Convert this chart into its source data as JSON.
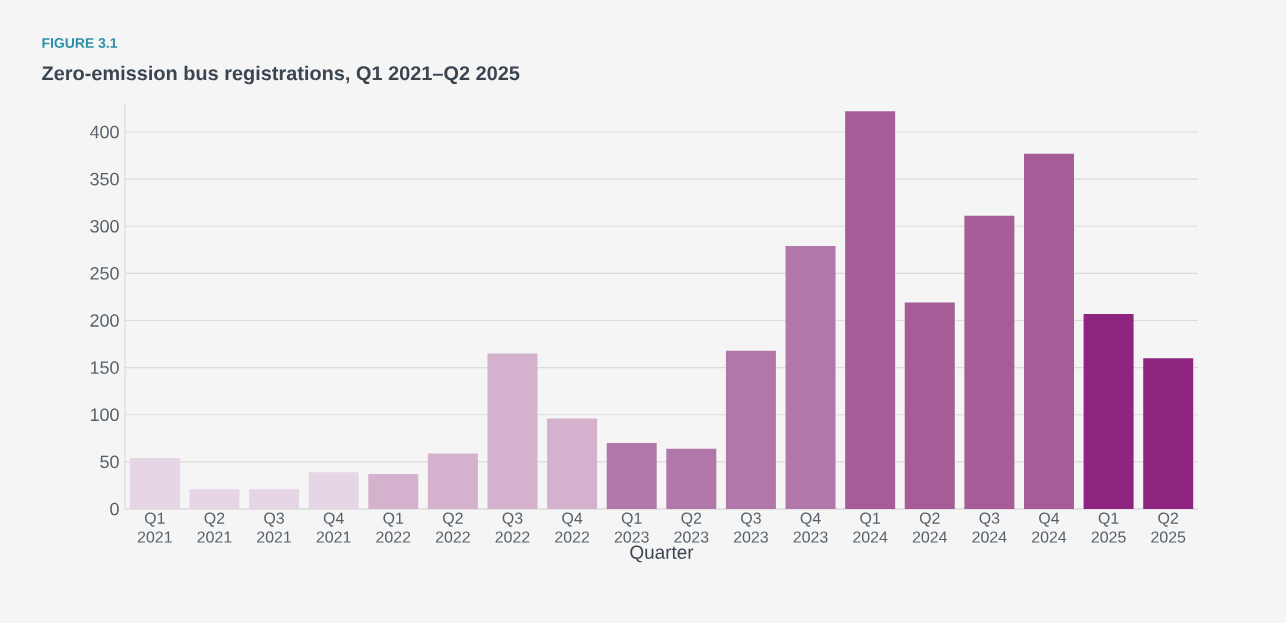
{
  "chart_data": {
    "type": "bar",
    "title": "Zero-emission bus registrations, Q1 2021–Q2 2025",
    "xlabel": "Quarter",
    "annotations": [
      "FIGURE 3.1"
    ],
    "categories": [
      "Q1 2021",
      "Q2 2021",
      "Q3 2021",
      "Q4 2021",
      "Q1 2022",
      "Q2 2022",
      "Q3 2022",
      "Q4 2022",
      "Q1 2023",
      "Q2 2023",
      "Q3 2023",
      "Q4 2023",
      "Q1 2024",
      "Q2 2024",
      "Q3 2024",
      "Q4 2024",
      "Q1 2025",
      "Q2 2025"
    ],
    "values": [
      54,
      21,
      21,
      39,
      37,
      59,
      165,
      96,
      70,
      64,
      168,
      279,
      422,
      219,
      311,
      377,
      207,
      160
    ],
    "colors": [
      "#e6d5e4",
      "#e6d5e4",
      "#e6d5e4",
      "#e6d5e4",
      "#d4b1cd",
      "#d4b1cd",
      "#d4b1cd",
      "#d4b1cd",
      "#b277a9",
      "#b277a9",
      "#b277a9",
      "#b277a9",
      "#a55c97",
      "#a55c97",
      "#a55c97",
      "#a55c97",
      "#8f2580",
      "#8f2580"
    ],
    "ylim": [
      0,
      430
    ],
    "yticks": [
      0,
      50,
      100,
      150,
      200,
      250,
      300,
      350,
      400
    ],
    "grid": "y"
  }
}
